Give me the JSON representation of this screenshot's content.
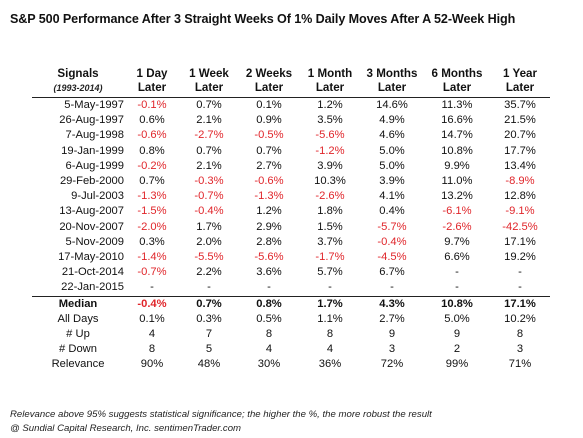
{
  "chart_data": {
    "type": "table",
    "title": "S&P 500 Performance After 3 Straight Weeks Of 1% Daily Moves After A 52-Week High",
    "columns": [
      {
        "line1": "Signals",
        "line2": "(1993-2014)"
      },
      {
        "line1": "1 Day",
        "line2": "Later"
      },
      {
        "line1": "1 Week",
        "line2": "Later"
      },
      {
        "line1": "2 Weeks",
        "line2": "Later"
      },
      {
        "line1": "1 Month",
        "line2": "Later"
      },
      {
        "line1": "3 Months",
        "line2": "Later"
      },
      {
        "line1": "6 Months",
        "line2": "Later"
      },
      {
        "line1": "1 Year",
        "line2": "Later"
      }
    ],
    "rows": [
      [
        "5-May-1997",
        "-0.1%",
        "0.7%",
        "0.1%",
        "1.2%",
        "14.6%",
        "11.3%",
        "35.7%"
      ],
      [
        "26-Aug-1997",
        "0.6%",
        "2.1%",
        "0.9%",
        "3.5%",
        "4.9%",
        "16.6%",
        "21.5%"
      ],
      [
        "7-Aug-1998",
        "-0.6%",
        "-2.7%",
        "-0.5%",
        "-5.6%",
        "4.6%",
        "14.7%",
        "20.7%"
      ],
      [
        "19-Jan-1999",
        "0.8%",
        "0.7%",
        "0.7%",
        "-1.2%",
        "5.0%",
        "10.8%",
        "17.7%"
      ],
      [
        "6-Aug-1999",
        "-0.2%",
        "2.1%",
        "2.7%",
        "3.9%",
        "5.0%",
        "9.9%",
        "13.4%"
      ],
      [
        "29-Feb-2000",
        "0.7%",
        "-0.3%",
        "-0.6%",
        "10.3%",
        "3.9%",
        "11.0%",
        "-8.9%"
      ],
      [
        "9-Jul-2003",
        "-1.3%",
        "-0.7%",
        "-1.3%",
        "-2.6%",
        "4.1%",
        "13.2%",
        "12.8%"
      ],
      [
        "13-Aug-2007",
        "-1.5%",
        "-0.4%",
        "1.2%",
        "1.8%",
        "0.4%",
        "-6.1%",
        "-9.1%"
      ],
      [
        "20-Nov-2007",
        "-2.0%",
        "1.7%",
        "2.9%",
        "1.5%",
        "-5.7%",
        "-2.6%",
        "-42.5%"
      ],
      [
        "5-Nov-2009",
        "0.3%",
        "2.0%",
        "2.8%",
        "3.7%",
        "-0.4%",
        "9.7%",
        "17.1%"
      ],
      [
        "17-May-2010",
        "-1.4%",
        "-5.5%",
        "-5.6%",
        "-1.7%",
        "-4.5%",
        "6.6%",
        "19.2%"
      ],
      [
        "21-Oct-2014",
        "-0.7%",
        "2.2%",
        "3.6%",
        "5.7%",
        "6.7%",
        "-",
        "-"
      ],
      [
        "22-Jan-2015",
        "-",
        "-",
        "-",
        "-",
        "-",
        "-",
        "-"
      ]
    ],
    "summary": [
      [
        "Median",
        "-0.4%",
        "0.7%",
        "0.8%",
        "1.7%",
        "4.3%",
        "10.8%",
        "17.1%"
      ],
      [
        "All Days",
        "0.1%",
        "0.3%",
        "0.5%",
        "1.1%",
        "2.7%",
        "5.0%",
        "10.2%"
      ],
      [
        "# Up",
        "4",
        "7",
        "8",
        "8",
        "9",
        "9",
        "8"
      ],
      [
        "# Down",
        "8",
        "5",
        "4",
        "4",
        "3",
        "2",
        "3"
      ],
      [
        "Relevance",
        "90%",
        "48%",
        "30%",
        "36%",
        "72%",
        "99%",
        "71%"
      ]
    ],
    "negative_color": "#e0262b"
  },
  "footnote": "Relevance above 95% suggests statistical significance; the higher the %, the more robust the result",
  "credit": "@ Sundial Capital Research, Inc.  sentimenTrader.com"
}
